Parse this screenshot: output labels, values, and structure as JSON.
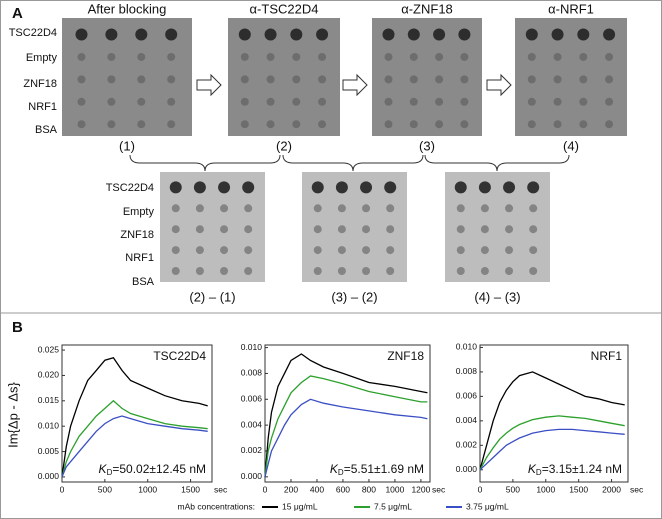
{
  "figure_a": {
    "panel": "A",
    "titles": [
      "After blocking",
      "α-TSC22D4",
      "α-ZNF18",
      "α-NRF1"
    ],
    "rows": [
      "TSC22D4",
      "Empty",
      "ZNF18",
      "NRF1",
      "BSA"
    ],
    "captions": [
      "(1)",
      "(2)",
      "(3)",
      "(4)"
    ],
    "difference_captions": [
      "(2) – (1)",
      "(3) – (2)",
      "(4) – (3)"
    ]
  },
  "panel_b": "B",
  "y_label": "Im{Δp - Δs}",
  "legend_title": "mAb concentrations:",
  "chart_data": [
    {
      "type": "line",
      "label": "TSC22D4",
      "kd_symbol": "K",
      "kd_sub": "D",
      "kd_value": "=50.02±12.45 nM",
      "x_unit": "sec",
      "x": [
        0,
        50,
        100,
        200,
        300,
        400,
        500,
        600,
        700,
        800,
        1000,
        1200,
        1400,
        1600,
        1700
      ],
      "xlim": [
        0,
        1750
      ],
      "xticks": [
        0,
        500,
        1000,
        1500
      ],
      "ylim": [
        -0.001,
        0.026
      ],
      "yticks": [
        {
          "value": 0,
          "label": "0.000"
        },
        {
          "value": 0.005,
          "label": "0.005"
        },
        {
          "value": 0.01,
          "label": "0.010"
        },
        {
          "value": 0.015,
          "label": "0.015"
        },
        {
          "value": 0.02,
          "label": "0.020"
        },
        {
          "value": 0.025,
          "label": "0.025"
        }
      ],
      "series": [
        {
          "name": "15 μg/mL",
          "color": "#000000",
          "values": [
            0,
            0.006,
            0.01,
            0.015,
            0.019,
            0.021,
            0.023,
            0.0235,
            0.021,
            0.019,
            0.0175,
            0.016,
            0.015,
            0.0145,
            0.014
          ]
        },
        {
          "name": "7.5 μg/mL",
          "color": "#2ca02c",
          "values": [
            0,
            0.003,
            0.005,
            0.008,
            0.01,
            0.012,
            0.0135,
            0.015,
            0.0135,
            0.0125,
            0.0115,
            0.0105,
            0.01,
            0.0097,
            0.0095
          ]
        },
        {
          "name": "3.75 μg/mL",
          "color": "#3b4fc4",
          "values": [
            0,
            0.002,
            0.003,
            0.005,
            0.007,
            0.009,
            0.0105,
            0.0115,
            0.012,
            0.0115,
            0.0105,
            0.01,
            0.0095,
            0.0092,
            0.009
          ]
        }
      ]
    },
    {
      "type": "line",
      "label": "ZNF18",
      "kd_symbol": "K",
      "kd_sub": "D",
      "kd_value": "=5.51±1.69 nM",
      "x_unit": "sec",
      "x": [
        0,
        25,
        50,
        100,
        150,
        200,
        280,
        350,
        450,
        600,
        800,
        1000,
        1200,
        1250
      ],
      "xlim": [
        0,
        1270
      ],
      "xticks": [
        0,
        200,
        400,
        600,
        800,
        1000,
        1200
      ],
      "ylim": [
        -0.0004,
        0.0102
      ],
      "yticks": [
        {
          "value": 0,
          "label": "0.000"
        },
        {
          "value": 0.002,
          "label": "0.002"
        },
        {
          "value": 0.004,
          "label": "0.004"
        },
        {
          "value": 0.006,
          "label": "0.006"
        },
        {
          "value": 0.008,
          "label": "0.008"
        },
        {
          "value": 0.01,
          "label": "0.010"
        }
      ],
      "series": [
        {
          "name": "15 μg/mL",
          "color": "#000000",
          "values": [
            0,
            0.003,
            0.005,
            0.007,
            0.008,
            0.009,
            0.0095,
            0.009,
            0.0085,
            0.008,
            0.0073,
            0.007,
            0.0066,
            0.0065
          ]
        },
        {
          "name": "7.5 μg/mL",
          "color": "#2ca02c",
          "values": [
            0,
            0.002,
            0.003,
            0.0045,
            0.0055,
            0.0065,
            0.0073,
            0.0078,
            0.0076,
            0.0072,
            0.0066,
            0.0062,
            0.0058,
            0.0058
          ]
        },
        {
          "name": "3.75 μg/mL",
          "color": "#3b4fc4",
          "values": [
            0,
            0.001,
            0.002,
            0.003,
            0.004,
            0.0048,
            0.0056,
            0.006,
            0.0057,
            0.0054,
            0.0051,
            0.0048,
            0.0046,
            0.0045
          ]
        }
      ]
    },
    {
      "type": "line",
      "label": "NRF1",
      "kd_symbol": "K",
      "kd_sub": "D",
      "kd_value": "=3.15±1.24 nM",
      "x_unit": "sec",
      "x": [
        0,
        100,
        200,
        300,
        400,
        500,
        600,
        800,
        1000,
        1200,
        1400,
        1600,
        1800,
        2000,
        2200
      ],
      "xlim": [
        0,
        2250
      ],
      "xticks": [
        0,
        500,
        1000,
        1500,
        2000
      ],
      "ylim": [
        -0.001,
        0.0102
      ],
      "yticks": [
        {
          "value": 0,
          "label": "0.000"
        },
        {
          "value": 0.002,
          "label": "0.002"
        },
        {
          "value": 0.004,
          "label": "0.004"
        },
        {
          "value": 0.006,
          "label": "0.006"
        },
        {
          "value": 0.008,
          "label": "0.008"
        },
        {
          "value": 0.01,
          "label": "0.010"
        }
      ],
      "series": [
        {
          "name": "15 μg/mL",
          "color": "#000000",
          "values": [
            0,
            0.002,
            0.004,
            0.0055,
            0.0065,
            0.0072,
            0.0077,
            0.008,
            0.0075,
            0.007,
            0.0065,
            0.006,
            0.0058,
            0.0055,
            0.0053
          ]
        },
        {
          "name": "7.5 μg/mL",
          "color": "#2ca02c",
          "values": [
            0,
            0.001,
            0.0018,
            0.0025,
            0.003,
            0.0034,
            0.0037,
            0.0041,
            0.0043,
            0.0044,
            0.0043,
            0.0042,
            0.004,
            0.0038,
            0.0036
          ]
        },
        {
          "name": "3.75 μg/mL",
          "color": "#3b4fc4",
          "values": [
            0,
            0.0005,
            0.001,
            0.0015,
            0.002,
            0.0023,
            0.0026,
            0.003,
            0.0032,
            0.0033,
            0.0033,
            0.0032,
            0.0031,
            0.003,
            0.0029
          ]
        }
      ]
    }
  ]
}
